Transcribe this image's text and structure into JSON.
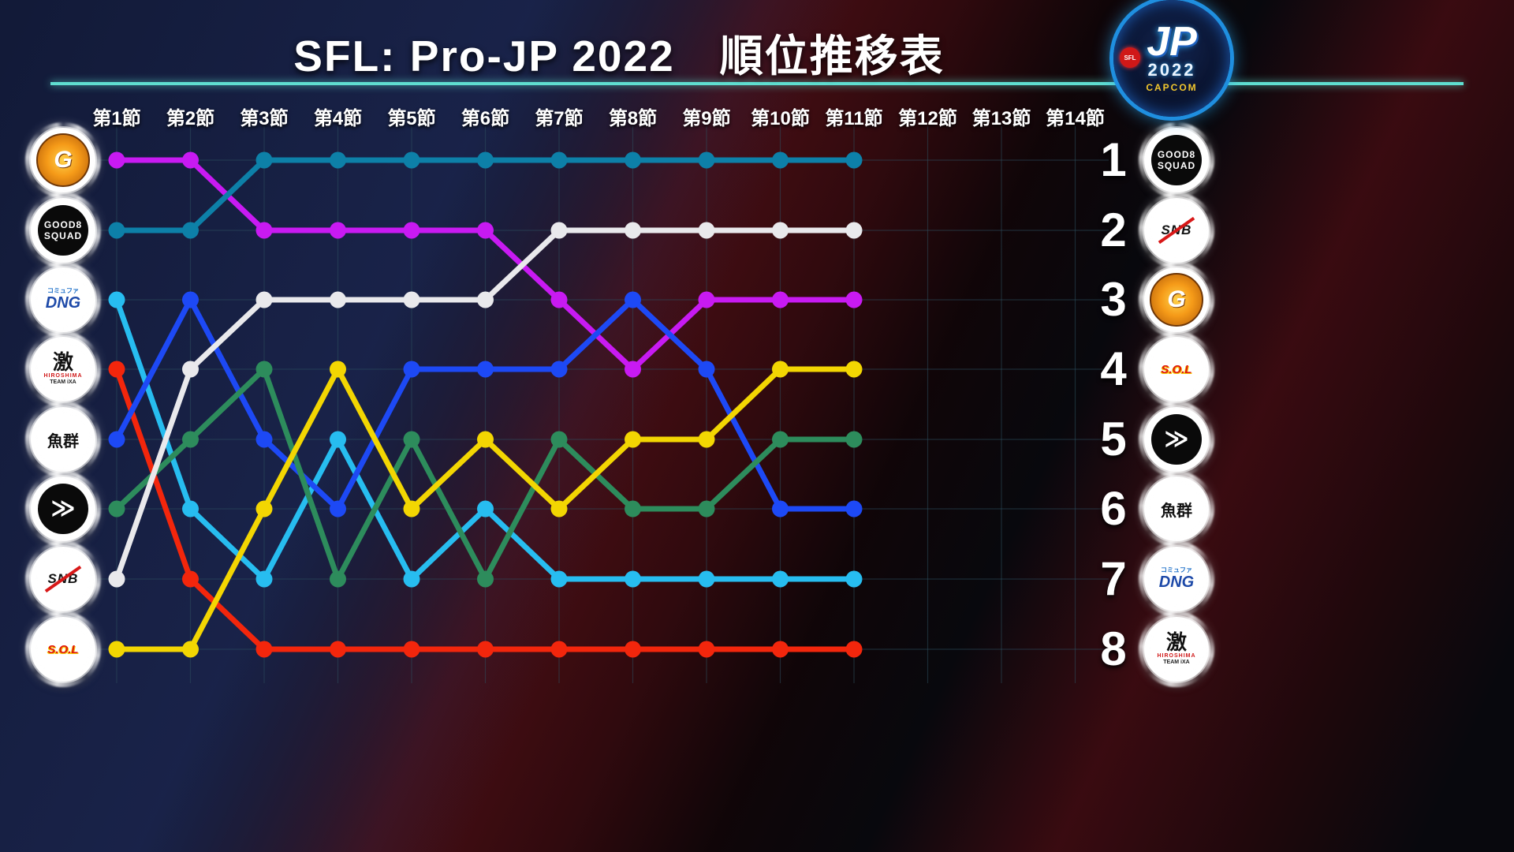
{
  "title": "SFL: Pro-JP 2022　順位推移表",
  "header_logo": {
    "jp": "JP",
    "year": "2022",
    "brand": "CAPCOM",
    "sfl": "SFL"
  },
  "right_rank_labels": [
    "1",
    "2",
    "3",
    "4",
    "5",
    "6",
    "7",
    "8"
  ],
  "chart_data": {
    "type": "line",
    "variant": "bump-chart-rank-progression",
    "title": "SFL: Pro-JP 2022 順位推移表",
    "x_categories": [
      "第1節",
      "第2節",
      "第3節",
      "第4節",
      "第5節",
      "第6節",
      "第7節",
      "第8節",
      "第9節",
      "第10節",
      "第11節",
      "第12節",
      "第13節",
      "第14節"
    ],
    "rounds_played": 11,
    "ylabel": "順位",
    "ylim": [
      1,
      8
    ],
    "grid": true,
    "legend_position": "left-and-right-axis-logos",
    "series": [
      {
        "id": "cag",
        "logo_style": "cag",
        "logo_lines": [
          "G"
        ],
        "color": "#c81af2",
        "values": [
          1,
          1,
          2,
          2,
          2,
          2,
          3,
          4,
          3,
          3,
          3
        ]
      },
      {
        "id": "good8",
        "logo_style": "good8",
        "logo_lines": [
          "GOOD8",
          "SQUAD"
        ],
        "color": "#0d80a8",
        "values": [
          2,
          2,
          1,
          1,
          1,
          1,
          1,
          1,
          1,
          1,
          1
        ]
      },
      {
        "id": "dng",
        "logo_style": "dng",
        "logo_lines": [
          "コミュファ",
          "DNG"
        ],
        "color": "#27bdf0",
        "values": [
          3,
          6,
          7,
          5,
          7,
          6,
          7,
          7,
          7,
          7,
          7
        ]
      },
      {
        "id": "ixa",
        "logo_style": "ixa",
        "logo_lines": [
          "激",
          "HIROSHIMA",
          "TEAM iXA"
        ],
        "color": "#f3260c",
        "values": [
          4,
          7,
          8,
          8,
          8,
          8,
          8,
          8,
          8,
          8,
          8
        ]
      },
      {
        "id": "gyogun",
        "logo_style": "gyogun",
        "logo_lines": [
          "魚群"
        ],
        "color": "#1d49f5",
        "values": [
          5,
          3,
          5,
          6,
          4,
          4,
          4,
          3,
          4,
          6,
          6
        ]
      },
      {
        "id": "fav",
        "logo_style": "fav",
        "logo_lines": [
          "≫"
        ],
        "color": "#2d8c5c",
        "values": [
          6,
          5,
          4,
          7,
          5,
          7,
          5,
          6,
          6,
          5,
          5
        ]
      },
      {
        "id": "snb",
        "logo_style": "snb",
        "logo_lines": [
          "SNB"
        ],
        "color": "#e9e9ec",
        "values": [
          7,
          4,
          3,
          3,
          3,
          3,
          2,
          2,
          2,
          2,
          2
        ]
      },
      {
        "id": "sol",
        "logo_style": "sol",
        "logo_lines": [
          "S.O.L"
        ],
        "color": "#f3d602",
        "values": [
          8,
          8,
          6,
          4,
          6,
          5,
          6,
          5,
          5,
          4,
          4
        ]
      }
    ],
    "left_axis_team_order": [
      "cag",
      "good8",
      "dng",
      "ixa",
      "gyogun",
      "fav",
      "snb",
      "sol"
    ],
    "right_axis_rank_order": [
      "good8",
      "snb",
      "cag",
      "sol",
      "fav",
      "gyogun",
      "dng",
      "ixa"
    ]
  }
}
